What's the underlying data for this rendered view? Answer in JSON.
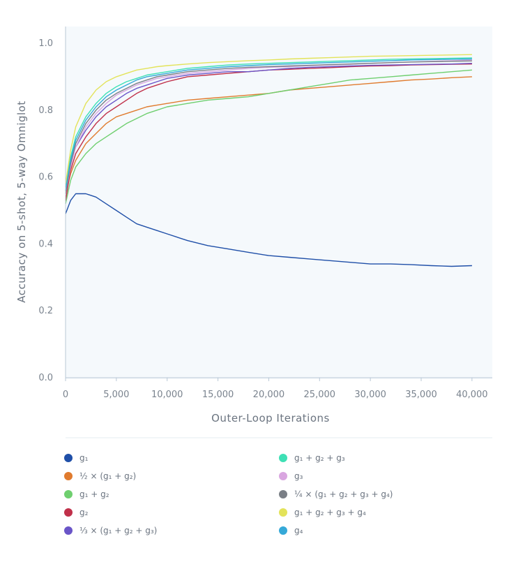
{
  "chart_data": {
    "type": "line",
    "xlabel": "Outer-Loop Iterations",
    "ylabel": "Accuracy on 5-shot, 5-way Omniglot",
    "xlim": [
      0,
      42000
    ],
    "ylim": [
      0,
      1.05
    ],
    "x_ticks": [
      0,
      5000,
      10000,
      15000,
      20000,
      25000,
      30000,
      35000,
      40000
    ],
    "x_tick_labels": [
      "0",
      "5,000",
      "10,000",
      "15,000",
      "20,000",
      "25,000",
      "30,000",
      "35,000",
      "40,000"
    ],
    "y_ticks": [
      0.0,
      0.2,
      0.4,
      0.6,
      0.8,
      1.0
    ],
    "y_tick_labels": [
      "0.0",
      "0.2",
      "0.4",
      "0.6",
      "0.8",
      "1.0"
    ],
    "grid": false,
    "legend_position": "bottom",
    "x": [
      0,
      500,
      1000,
      2000,
      3000,
      4000,
      5000,
      6000,
      7000,
      8000,
      9000,
      10000,
      12000,
      14000,
      16000,
      18000,
      20000,
      22000,
      24000,
      26000,
      28000,
      30000,
      32000,
      34000,
      36000,
      38000,
      40000
    ],
    "series": [
      {
        "name": "g₁",
        "color": "#1f4fa8",
        "values": [
          0.49,
          0.53,
          0.55,
          0.55,
          0.54,
          0.52,
          0.5,
          0.48,
          0.46,
          0.45,
          0.44,
          0.43,
          0.41,
          0.395,
          0.385,
          0.375,
          0.365,
          0.36,
          0.355,
          0.35,
          0.345,
          0.34,
          0.34,
          0.338,
          0.335,
          0.333,
          0.335
        ]
      },
      {
        "name": "½ × (g₁ + g₂)",
        "color": "#e07b2e",
        "values": [
          0.55,
          0.61,
          0.65,
          0.7,
          0.73,
          0.76,
          0.78,
          0.79,
          0.8,
          0.81,
          0.815,
          0.82,
          0.83,
          0.835,
          0.84,
          0.845,
          0.85,
          0.86,
          0.865,
          0.87,
          0.875,
          0.88,
          0.885,
          0.89,
          0.893,
          0.897,
          0.9
        ]
      },
      {
        "name": "g₁ + g₂",
        "color": "#6fcf6f",
        "values": [
          0.52,
          0.59,
          0.63,
          0.67,
          0.7,
          0.72,
          0.74,
          0.76,
          0.775,
          0.79,
          0.8,
          0.81,
          0.82,
          0.83,
          0.835,
          0.84,
          0.85,
          0.86,
          0.87,
          0.88,
          0.89,
          0.895,
          0.9,
          0.905,
          0.91,
          0.915,
          0.92
        ]
      },
      {
        "name": "g₂",
        "color": "#c0304a",
        "values": [
          0.53,
          0.62,
          0.67,
          0.72,
          0.76,
          0.79,
          0.81,
          0.83,
          0.85,
          0.865,
          0.875,
          0.885,
          0.9,
          0.905,
          0.91,
          0.915,
          0.92,
          0.922,
          0.925,
          0.927,
          0.93,
          0.932,
          0.933,
          0.935,
          0.936,
          0.937,
          0.938
        ]
      },
      {
        "name": "⅓ × (g₁ + g₂ + g₃)",
        "color": "#6a55c8",
        "values": [
          0.56,
          0.64,
          0.69,
          0.74,
          0.78,
          0.81,
          0.83,
          0.85,
          0.865,
          0.875,
          0.885,
          0.895,
          0.905,
          0.91,
          0.915,
          0.915,
          0.92,
          0.925,
          0.928,
          0.93,
          0.932,
          0.934,
          0.935,
          0.936,
          0.937,
          0.938,
          0.94
        ]
      },
      {
        "name": "g₁ + g₂ + g₃",
        "color": "#3ee0b5",
        "values": [
          0.57,
          0.66,
          0.72,
          0.78,
          0.82,
          0.85,
          0.87,
          0.885,
          0.895,
          0.905,
          0.91,
          0.915,
          0.925,
          0.93,
          0.935,
          0.938,
          0.94,
          0.942,
          0.944,
          0.946,
          0.948,
          0.95,
          0.952,
          0.953,
          0.954,
          0.955,
          0.956
        ]
      },
      {
        "name": "g₃",
        "color": "#d9a6e0",
        "values": [
          0.55,
          0.63,
          0.69,
          0.75,
          0.79,
          0.82,
          0.845,
          0.86,
          0.875,
          0.885,
          0.895,
          0.9,
          0.91,
          0.915,
          0.92,
          0.925,
          0.928,
          0.93,
          0.933,
          0.935,
          0.937,
          0.94,
          0.942,
          0.944,
          0.946,
          0.948,
          0.95
        ]
      },
      {
        "name": "¼ × (g₁ + g₂ + g₃ + g₄)",
        "color": "#7a7f86",
        "values": [
          0.55,
          0.64,
          0.7,
          0.76,
          0.8,
          0.83,
          0.85,
          0.865,
          0.88,
          0.89,
          0.9,
          0.905,
          0.915,
          0.92,
          0.925,
          0.928,
          0.93,
          0.932,
          0.934,
          0.936,
          0.938,
          0.94,
          0.942,
          0.944,
          0.945,
          0.946,
          0.947
        ]
      },
      {
        "name": "g₁ + g₂ + g₃ + g₄",
        "color": "#e3e35a",
        "values": [
          0.58,
          0.68,
          0.75,
          0.82,
          0.86,
          0.885,
          0.9,
          0.91,
          0.92,
          0.925,
          0.93,
          0.933,
          0.938,
          0.942,
          0.945,
          0.948,
          0.95,
          0.953,
          0.955,
          0.957,
          0.959,
          0.961,
          0.962,
          0.963,
          0.964,
          0.965,
          0.966
        ]
      },
      {
        "name": "g₄",
        "color": "#35a9d8",
        "values": [
          0.56,
          0.65,
          0.71,
          0.77,
          0.81,
          0.84,
          0.86,
          0.875,
          0.89,
          0.9,
          0.905,
          0.91,
          0.92,
          0.925,
          0.93,
          0.933,
          0.936,
          0.938,
          0.94,
          0.942,
          0.944,
          0.946,
          0.948,
          0.95,
          0.951,
          0.952,
          0.953
        ]
      }
    ]
  }
}
